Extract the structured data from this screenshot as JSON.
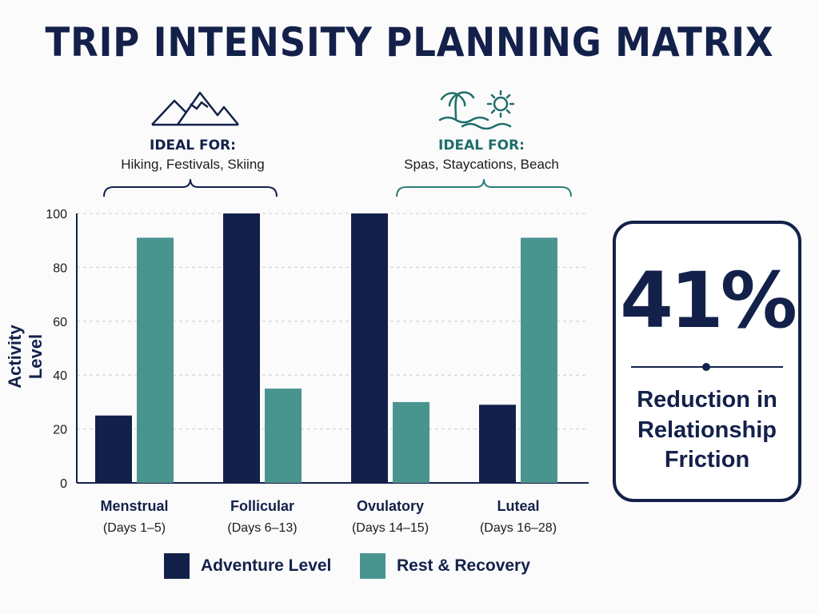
{
  "title": "TRIP INTENSITY PLANNING MATRIX",
  "ideal_left": {
    "heading": "IDEAL FOR:",
    "items": "Hiking, Festivals, Skiing",
    "icon": "mountain-icon"
  },
  "ideal_right": {
    "heading": "IDEAL FOR:",
    "items": "Spas, Staycations, Beach",
    "icon": "palm-tree-sun-icon"
  },
  "colors": {
    "navy": "#13214a",
    "teal": "#4a9490"
  },
  "stat": {
    "value": "41%",
    "text": "Reduction in Relationship Friction"
  },
  "chart_data": {
    "type": "bar",
    "ylabel": "Activity Level",
    "ylim": [
      0,
      100
    ],
    "yticks": [
      0,
      20,
      40,
      60,
      80,
      100
    ],
    "grid": true,
    "categories": [
      {
        "name": "Menstrual",
        "days": "(Days 1–5)"
      },
      {
        "name": "Follicular",
        "days": "(Days 6–13)"
      },
      {
        "name": "Ovulatory",
        "days": "(Days 14–15)"
      },
      {
        "name": "Luteal",
        "days": "(Days 16–28)"
      }
    ],
    "series": [
      {
        "name": "Adventure Level",
        "color": "#13214a",
        "values": [
          25,
          100,
          100,
          29
        ]
      },
      {
        "name": "Rest & Recovery",
        "color": "#4a9490",
        "values": [
          91,
          35,
          30,
          91
        ]
      }
    ],
    "legend_position": "bottom"
  }
}
